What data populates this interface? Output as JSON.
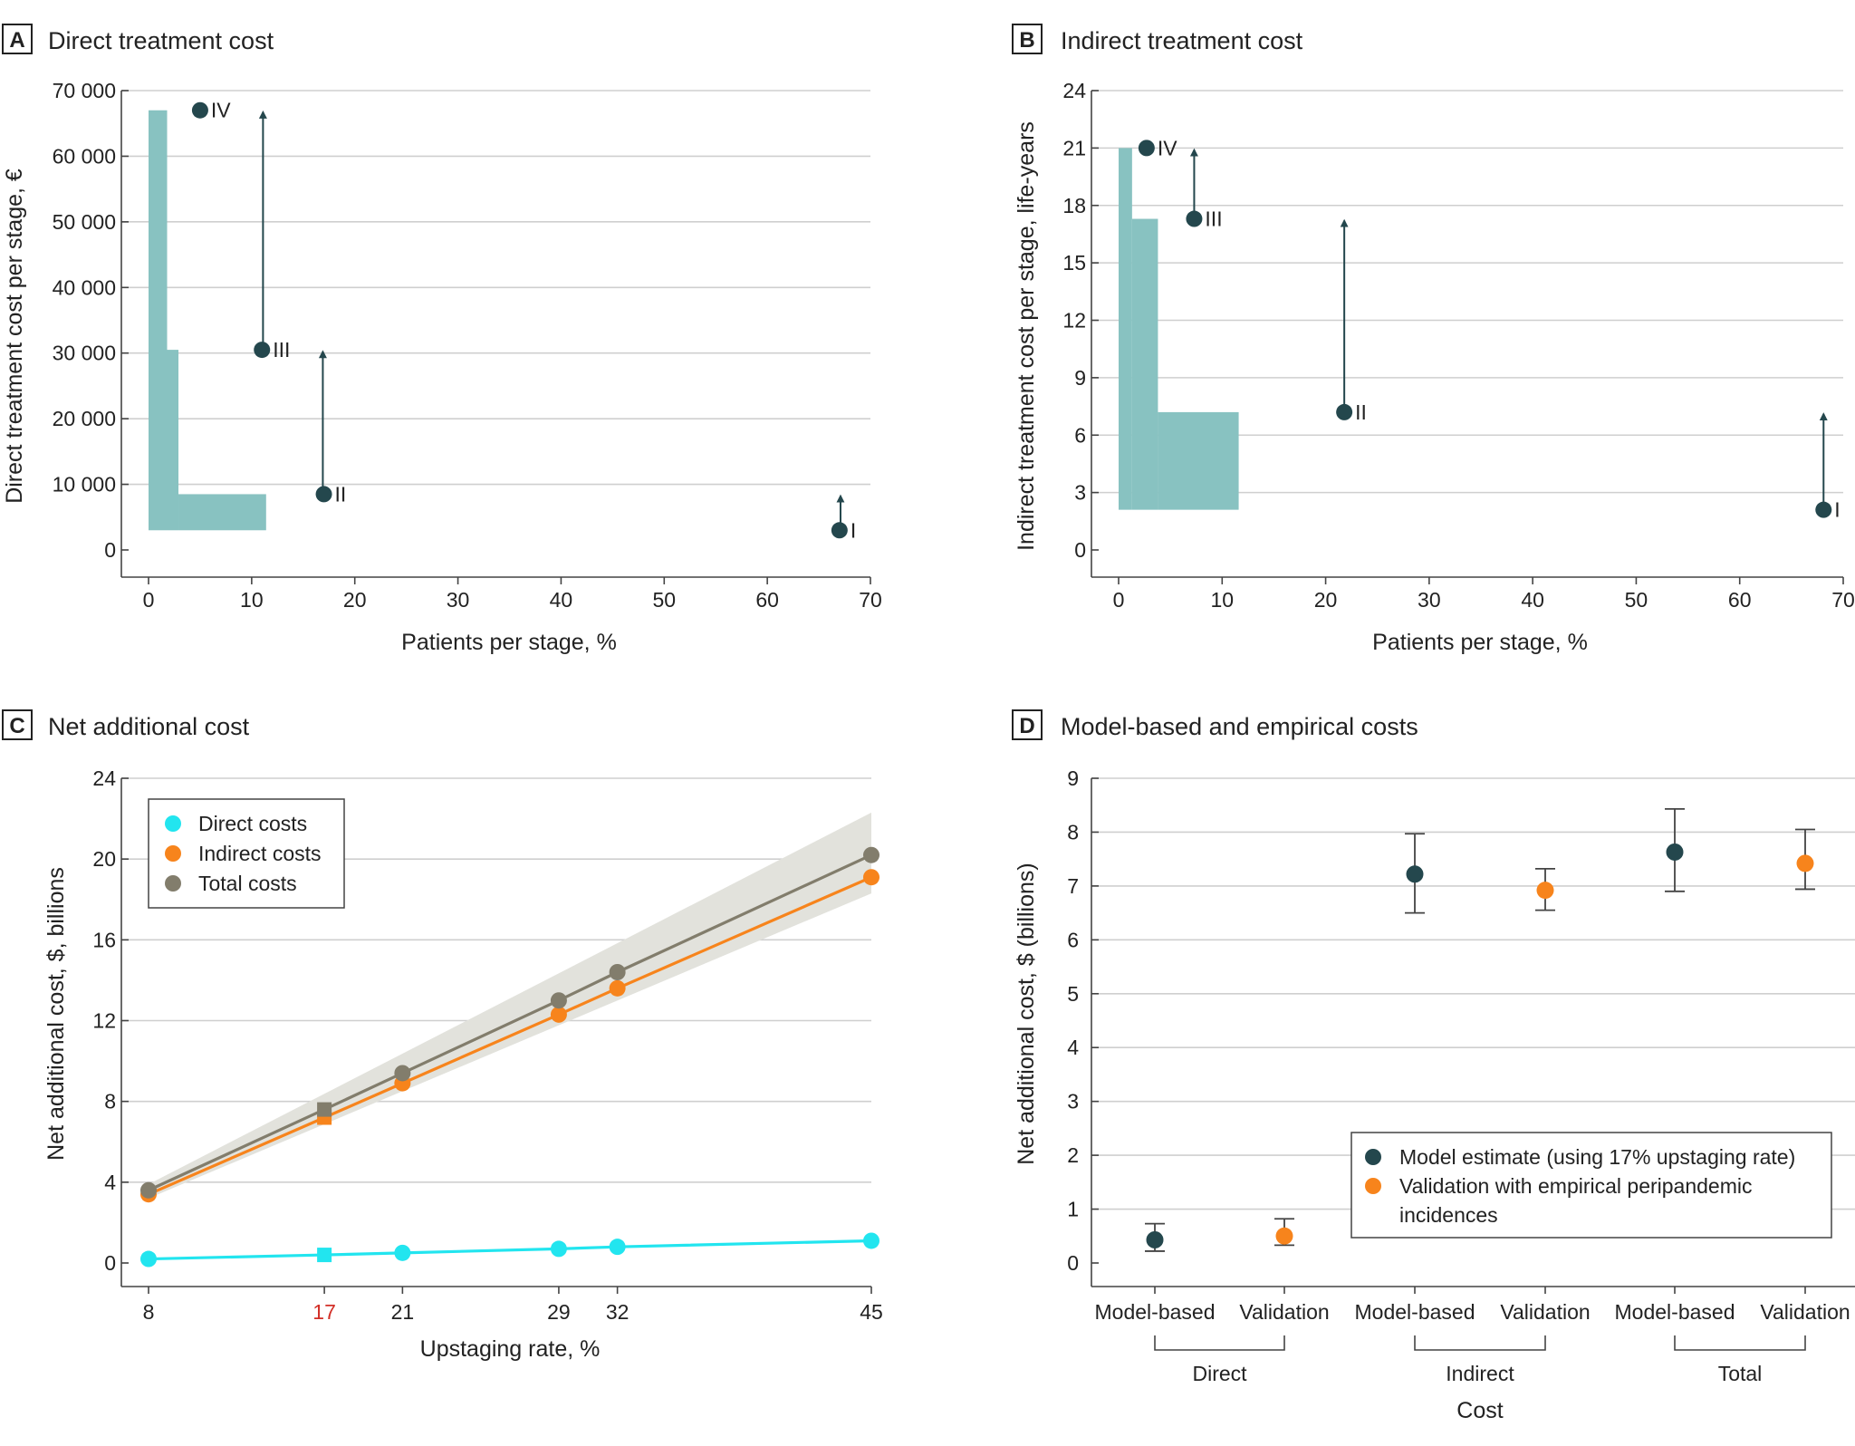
{
  "colors": {
    "bar": "#88c2c1",
    "dark": "#24474d",
    "direct": "#22e5ef",
    "indirect": "#f7841c",
    "total": "#827d6c",
    "band": "#e2e2dc",
    "highlight_tick": "#d22f27"
  },
  "panels": {
    "A": {
      "letter": "A",
      "title": "Direct treatment cost"
    },
    "B": {
      "letter": "B",
      "title": "Indirect treatment cost"
    },
    "C": {
      "letter": "C",
      "title": "Net additional cost"
    },
    "D": {
      "letter": "D",
      "title": "Model-based and empirical costs"
    }
  },
  "chart_data": [
    {
      "id": "A",
      "type": "bar",
      "title": "Direct treatment cost",
      "xlabel": "Patients per stage, %",
      "ylabel": "Direct treatment cost per stage, €",
      "xlim": [
        0,
        70
      ],
      "ylim": [
        0,
        70000
      ],
      "xticks": [
        "0",
        "10",
        "20",
        "30",
        "40",
        "50",
        "60",
        "70"
      ],
      "yticks": [
        "0",
        "10 000",
        "20 000",
        "30 000",
        "40 000",
        "50 000",
        "60 000",
        "70 000"
      ],
      "categories": [
        "IV",
        "III",
        "II",
        "I"
      ],
      "prepandemic": [
        {
          "stage": "IV",
          "x": 5,
          "y": 67000
        },
        {
          "stage": "III",
          "x": 11,
          "y": 30500
        },
        {
          "stage": "II",
          "x": 17,
          "y": 8500
        },
        {
          "stage": "I",
          "x": 67,
          "y": 3000
        }
      ],
      "shift_arrows": [
        {
          "x": 11.1,
          "from": 30500,
          "to": 67000
        },
        {
          "x": 16.9,
          "from": 8500,
          "to": 30500
        },
        {
          "x": 67.1,
          "from": 3000,
          "to": 8500
        }
      ],
      "stacked_bars": [
        {
          "stage": "IV",
          "x0": 0,
          "x1": 1.8,
          "bottom": 3000,
          "top": 67000
        },
        {
          "stage": "III",
          "x0": 1.8,
          "x1": 2.9,
          "bottom": 3000,
          "top": 30500
        },
        {
          "stage": "II",
          "x0": 2.9,
          "x1": 11.4,
          "bottom": 3000,
          "top": 8500
        }
      ]
    },
    {
      "id": "B",
      "type": "bar",
      "title": "Indirect treatment cost",
      "xlabel": "Patients per stage, %",
      "ylabel": "Indirect treatment cost per stage, life-years",
      "xlim": [
        0,
        70
      ],
      "ylim": [
        0,
        24
      ],
      "xticks": [
        "0",
        "10",
        "20",
        "30",
        "40",
        "50",
        "60",
        "70"
      ],
      "yticks": [
        "0",
        "3",
        "6",
        "9",
        "12",
        "15",
        "18",
        "21",
        "24"
      ],
      "categories": [
        "IV",
        "III",
        "II",
        "I"
      ],
      "prepandemic": [
        {
          "stage": "IV",
          "x": 2.7,
          "y": 21
        },
        {
          "stage": "III",
          "x": 7.3,
          "y": 17.3
        },
        {
          "stage": "II",
          "x": 21.8,
          "y": 7.2
        },
        {
          "stage": "I",
          "x": 68.1,
          "y": 2.1
        }
      ],
      "shift_arrows": [
        {
          "x": 7.3,
          "from": 17.3,
          "to": 21
        },
        {
          "x": 21.8,
          "from": 7.2,
          "to": 17.3
        },
        {
          "x": 68.1,
          "from": 2.1,
          "to": 7.2
        }
      ],
      "stacked_bars": [
        {
          "stage": "IV",
          "x0": 0,
          "x1": 1.3,
          "bottom": 2.1,
          "top": 21
        },
        {
          "stage": "III",
          "x0": 1.3,
          "x1": 3.8,
          "bottom": 2.1,
          "top": 17.3
        },
        {
          "stage": "II",
          "x0": 3.8,
          "x1": 11.6,
          "bottom": 2.1,
          "top": 7.2
        }
      ]
    },
    {
      "id": "C",
      "type": "line",
      "title": "Net additional cost",
      "xlabel": "Upstaging rate, %",
      "ylabel": "Net additional cost, $, billions",
      "xlim": [
        8,
        45
      ],
      "ylim": [
        0,
        24
      ],
      "x": [
        8,
        17,
        21,
        29,
        32,
        45
      ],
      "xticks": [
        "8",
        "17",
        "21",
        "29",
        "32",
        "45"
      ],
      "highlight_x": "17",
      "yticks": [
        "0",
        "4",
        "8",
        "12",
        "16",
        "20",
        "24"
      ],
      "series": [
        {
          "name": "Direct costs",
          "color_key": "direct",
          "values": [
            0.2,
            0.4,
            0.5,
            0.7,
            0.8,
            1.1
          ]
        },
        {
          "name": "Indirect costs",
          "color_key": "indirect",
          "values": [
            3.4,
            7.2,
            8.9,
            12.3,
            13.6,
            19.1
          ]
        },
        {
          "name": "Total costs",
          "color_key": "total",
          "values": [
            3.6,
            7.6,
            9.4,
            13.0,
            14.4,
            20.2
          ]
        }
      ],
      "total_band": {
        "x": [
          8,
          45
        ],
        "lower": [
          3.2,
          18.3
        ],
        "upper": [
          3.9,
          22.3
        ]
      },
      "legend": [
        "Direct costs",
        "Indirect costs",
        "Total costs"
      ]
    },
    {
      "id": "D",
      "type": "scatter",
      "title": "Model-based and empirical costs",
      "xlabel": "Cost",
      "ylabel": "Net additional cost, $ (billions)",
      "ylim": [
        0,
        9
      ],
      "yticks": [
        "0",
        "1",
        "2",
        "3",
        "4",
        "5",
        "6",
        "7",
        "8",
        "9"
      ],
      "categories": [
        "Model-based",
        "Validation",
        "Model-based",
        "Validation",
        "Model-based",
        "Validation"
      ],
      "groups": [
        "Direct",
        "Indirect",
        "Total"
      ],
      "series": [
        {
          "name": "Model estimate (using 17% upstaging rate)",
          "color_key": "dark",
          "values": [
            0.43,
            7.22,
            7.63
          ],
          "lower": [
            0.22,
            6.5,
            6.9
          ],
          "upper": [
            0.73,
            7.97,
            8.43
          ]
        },
        {
          "name": "Validation with empirical peripandemic incidences",
          "color_key": "indirect",
          "values": [
            0.5,
            6.92,
            7.42
          ],
          "lower": [
            0.33,
            6.55,
            6.94
          ],
          "upper": [
            0.82,
            7.32,
            8.05
          ]
        }
      ],
      "legend": [
        "Model estimate (using 17% upstaging rate)",
        "Validation with empirical peripandemic incidences"
      ]
    }
  ]
}
